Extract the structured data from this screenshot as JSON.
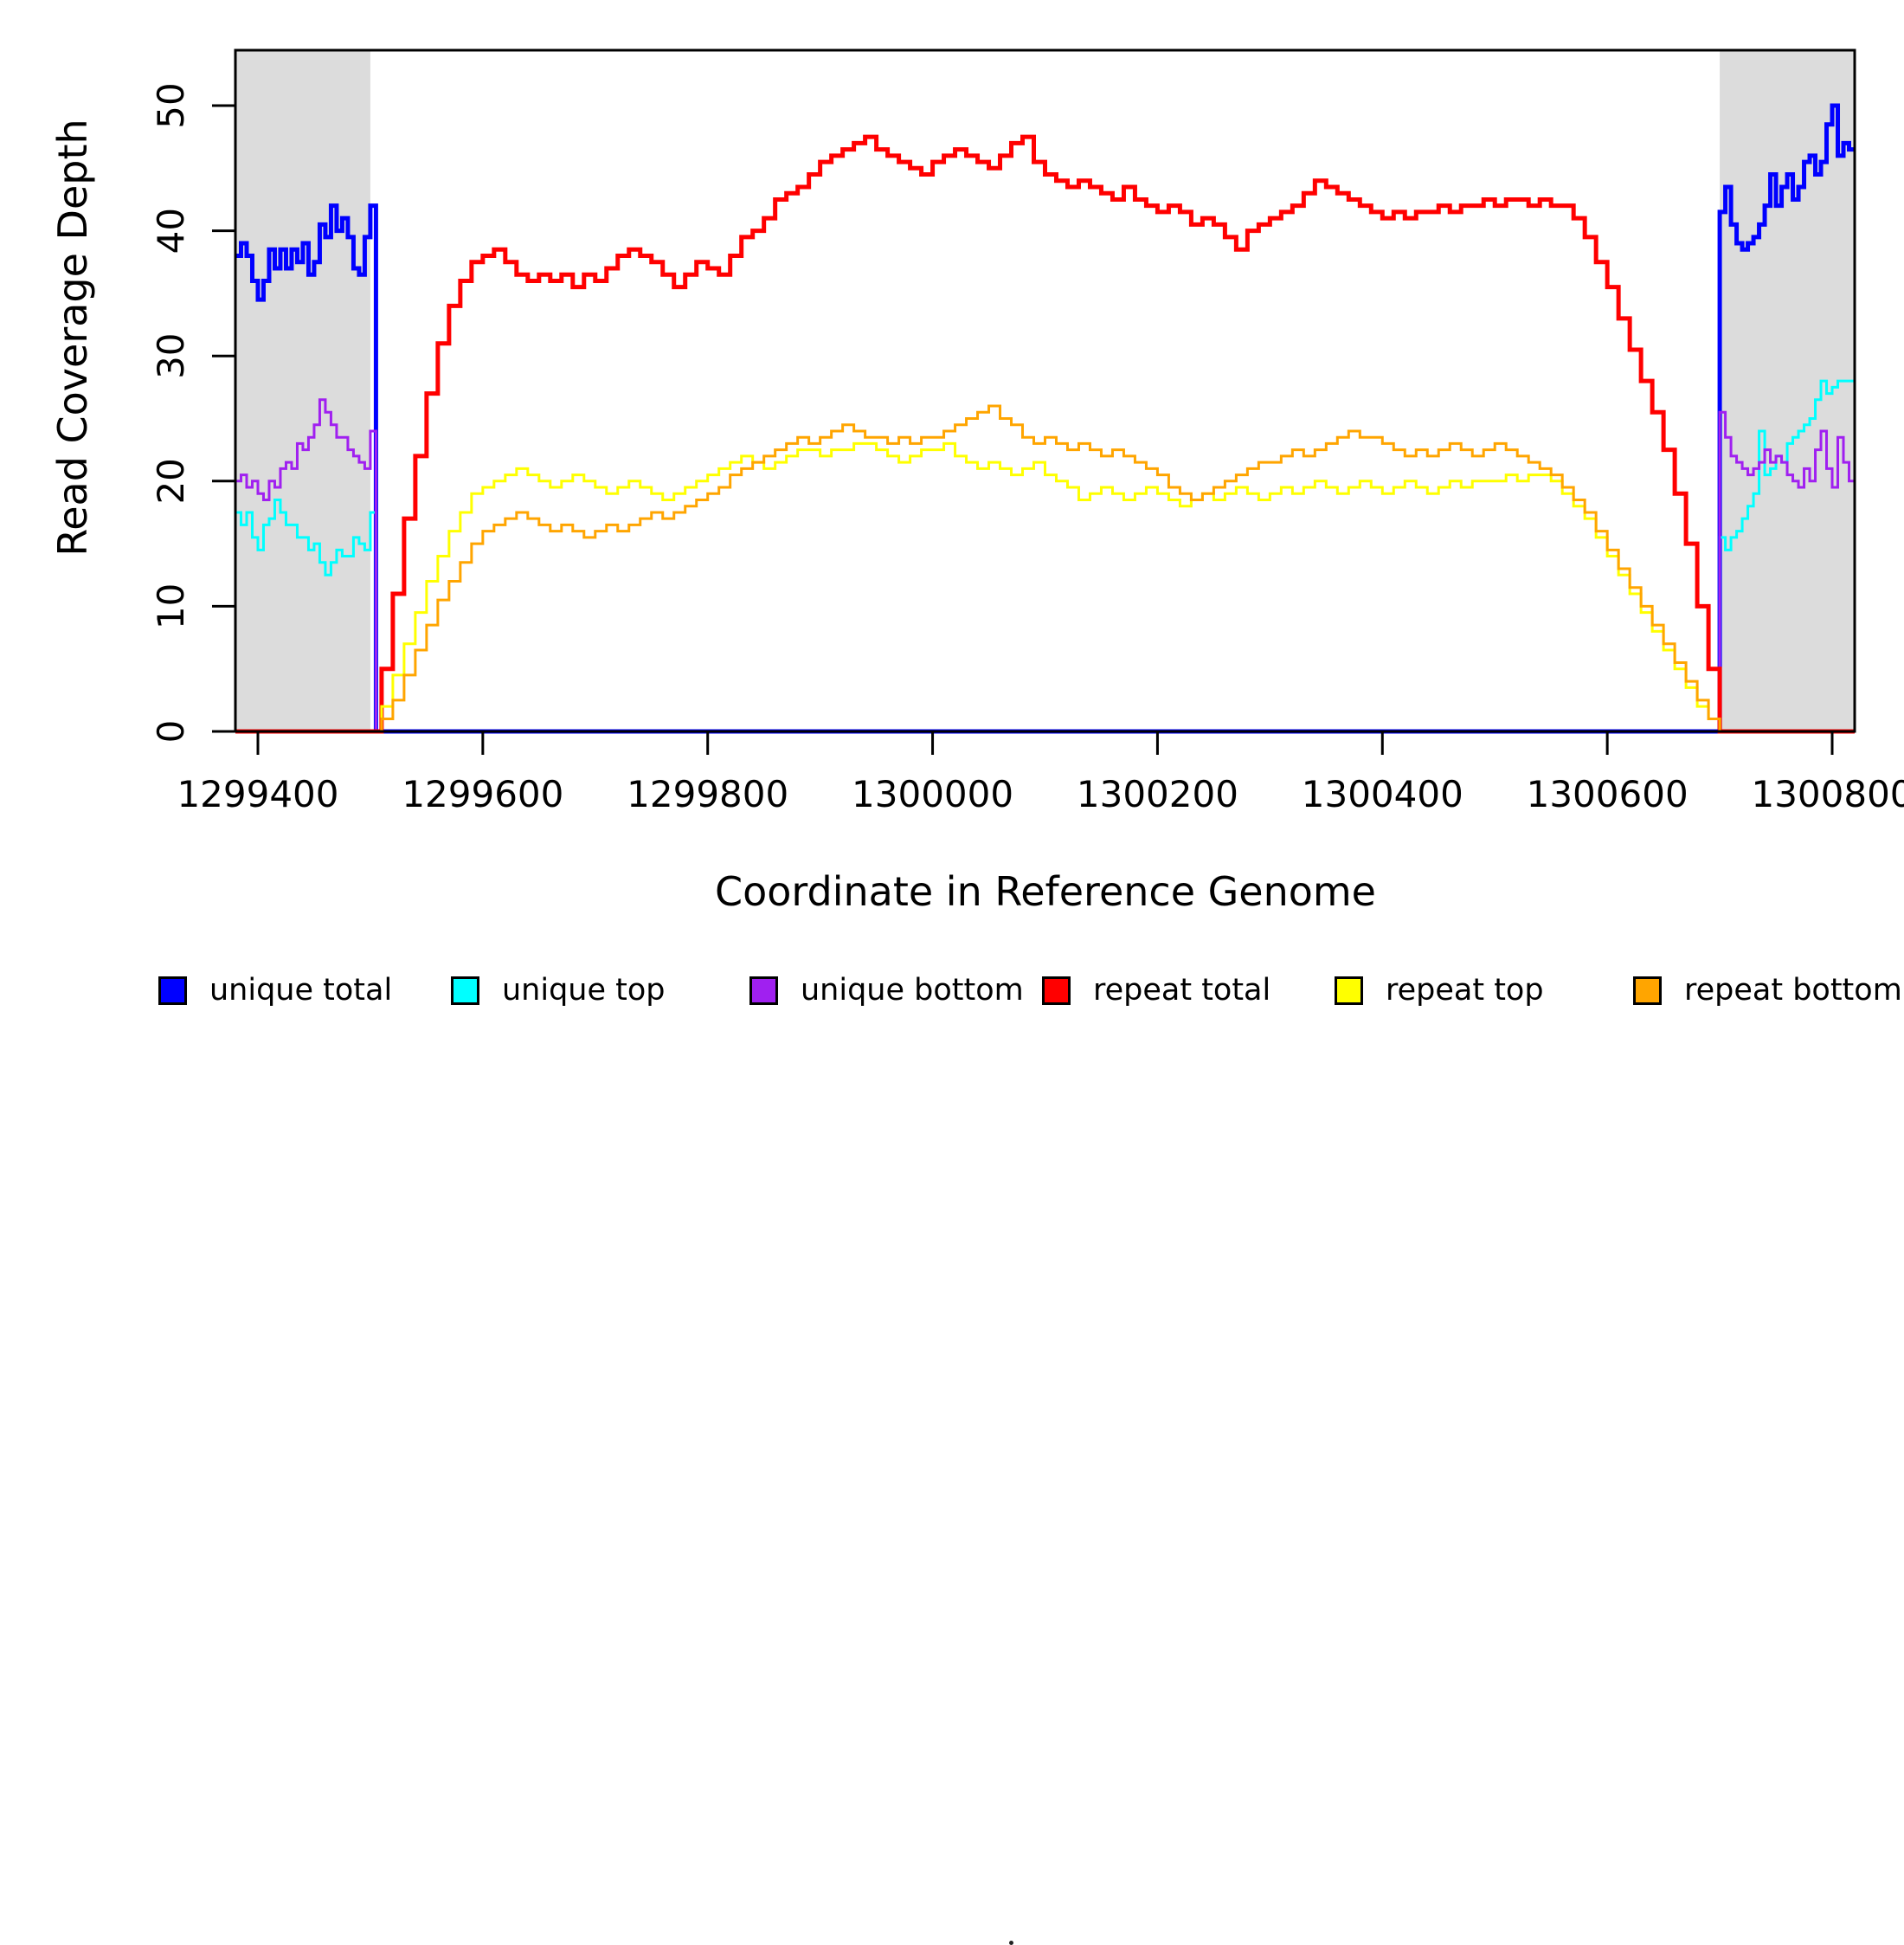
{
  "figure": {
    "x_axis_title": "Coordinate in Reference Genome",
    "y_axis_title": "Read Coverage Depth"
  },
  "legend": {
    "items": [
      {
        "label": "unique total",
        "color": "#0000FF"
      },
      {
        "label": "unique top",
        "color": "#00FFFF"
      },
      {
        "label": "unique bottom",
        "color": "#A020F0"
      },
      {
        "label": "repeat total",
        "color": "#FF0000"
      },
      {
        "label": "repeat top",
        "color": "#FFFF00"
      },
      {
        "label": "repeat bottom",
        "color": "#FFA500"
      }
    ]
  },
  "chart_data": {
    "type": "line",
    "line_style": "step",
    "title": "",
    "xlabel": "Coordinate in Reference Genome",
    "ylabel": "Read Coverage Depth",
    "xlim": [
      1299380,
      1300820
    ],
    "ylim": [
      0,
      54.5
    ],
    "x_ticks": [
      1299400,
      1299600,
      1299800,
      1300000,
      1300200,
      1300400,
      1300600,
      1300800
    ],
    "x_tick_labels": [
      "1299400",
      "1299600",
      "1299800",
      "1300000",
      "1300200",
      "1300400",
      "1300600",
      "1300800"
    ],
    "y_ticks": [
      0,
      10,
      20,
      30,
      40,
      50
    ],
    "y_tick_labels": [
      "0",
      "10",
      "20",
      "30",
      "40",
      "50"
    ],
    "grid": false,
    "legend_position": "bottom",
    "plot_background": "#FFFFFF",
    "shaded_regions": [
      {
        "x0": 1299380,
        "x1": 1299500,
        "color": "#DCDCDC"
      },
      {
        "x0": 1300700,
        "x1": 1300820,
        "color": "#DCDCDC"
      }
    ],
    "series": [
      {
        "name": "unique total",
        "color": "#0000FF",
        "line_width": 5,
        "xend": 1300820,
        "segments": [
          {
            "x0": 1299380,
            "dx": 5,
            "values": [
              38,
              39,
              38,
              36,
              34.5,
              36,
              38.5,
              37,
              38.5,
              37,
              38.5,
              37.5,
              39,
              36.5,
              37.5,
              40.5,
              39.5,
              42,
              40,
              41,
              39.5,
              37,
              36.5,
              39.5,
              42
            ]
          },
          {
            "x0": 1299505,
            "dx": 1195,
            "values": [
              0
            ]
          },
          {
            "x0": 1300700,
            "dx": 5,
            "values": [
              41.5,
              43.5,
              40.5,
              39,
              38.5,
              39,
              39.5,
              40.5,
              42,
              44.5,
              42,
              43.5,
              44.5,
              42.5,
              43.5,
              45.5,
              46,
              44.5,
              45.5,
              48.5,
              50,
              46,
              47,
              46.5
            ]
          }
        ]
      },
      {
        "name": "unique top",
        "color": "#00FFFF",
        "line_width": 3,
        "xend": 1300820,
        "segments": [
          {
            "x0": 1299380,
            "dx": 5,
            "values": [
              17.5,
              16.5,
              17.5,
              15.5,
              14.5,
              16.5,
              17,
              18.5,
              17.5,
              16.5,
              16.5,
              15.5,
              15.5,
              14.5,
              15,
              13.5,
              12.5,
              13.5,
              14.5,
              14,
              14,
              15.5,
              15,
              14.5,
              17.5
            ]
          },
          {
            "x0": 1299505,
            "dx": 1195,
            "values": [
              0
            ]
          },
          {
            "x0": 1300700,
            "dx": 5,
            "values": [
              15.5,
              14.5,
              15.5,
              16,
              17,
              18,
              19,
              24,
              20.5,
              21,
              22,
              21.5,
              23,
              23.5,
              24,
              24.5,
              25,
              26.5,
              28,
              27,
              27.5,
              28,
              28,
              28
            ]
          }
        ]
      },
      {
        "name": "unique bottom",
        "color": "#A020F0",
        "line_width": 3,
        "xend": 1300820,
        "segments": [
          {
            "x0": 1299380,
            "dx": 5,
            "values": [
              20,
              20.5,
              19.5,
              20,
              19,
              18.5,
              20,
              19.5,
              21,
              21.5,
              21,
              23,
              22.5,
              23.5,
              24.5,
              26.5,
              25.5,
              24.5,
              23.5,
              23.5,
              22.5,
              22,
              21.5,
              21,
              24
            ]
          },
          {
            "x0": 1299505,
            "dx": 1195,
            "values": [
              0
            ]
          },
          {
            "x0": 1300700,
            "dx": 5,
            "values": [
              25.5,
              23.5,
              22,
              21.5,
              21,
              20.5,
              21,
              21.5,
              22.5,
              21.5,
              22,
              21.5,
              20.5,
              20,
              19.5,
              21,
              20,
              22.5,
              24,
              21,
              19.5,
              23.5,
              21.5,
              20
            ]
          }
        ]
      },
      {
        "name": "repeat total",
        "color": "#FF0000",
        "line_width": 5,
        "xend": 1300820,
        "segments": [
          {
            "x0": 1299380,
            "dx": 120,
            "values": [
              0
            ]
          },
          {
            "x0": 1299500,
            "dx": 10,
            "values": [
              0,
              5,
              11,
              17,
              22,
              27,
              31,
              34,
              36,
              37.5,
              38,
              38.5,
              37.5,
              36.5,
              36,
              36.5,
              36,
              36.5,
              35.5,
              36.5,
              36,
              37,
              38,
              38.5,
              38,
              37.5,
              36.5,
              35.5,
              36.5,
              37.5,
              37,
              36.5,
              38,
              39.5,
              40,
              41,
              42.5,
              43,
              43.5,
              44.5,
              45.5,
              46,
              46.5,
              47,
              47.5,
              46.5,
              46,
              45.5,
              45,
              44.5,
              45.5,
              46,
              46.5,
              46,
              45.5,
              45,
              46,
              47,
              47.5,
              45.5,
              44.5,
              44,
              43.5,
              44,
              43.5,
              43,
              42.5,
              43.5,
              42.5,
              42,
              41.5,
              42,
              41.5,
              40.5,
              41,
              40.5,
              39.5,
              38.5,
              40,
              40.5,
              41,
              41.5,
              42,
              43,
              44,
              43.5,
              43,
              42.5,
              42,
              41.5,
              41,
              41.5,
              41,
              41.5,
              41.5,
              42,
              41.5,
              42,
              42,
              42.5,
              42,
              42.5,
              42.5,
              42,
              42.5,
              42,
              42,
              41,
              39.5,
              37.5,
              35.5,
              33,
              30.5,
              28,
              25.5,
              22.5,
              19,
              15,
              10,
              5
            ]
          },
          {
            "x0": 1300700,
            "dx": 120,
            "values": [
              0
            ]
          }
        ]
      },
      {
        "name": "repeat top",
        "color": "#FFFF00",
        "line_width": 3,
        "xend": 1300820,
        "segments": [
          {
            "x0": 1299380,
            "dx": 120,
            "values": [
              0
            ]
          },
          {
            "x0": 1299500,
            "dx": 10,
            "values": [
              0,
              2,
              4.5,
              7,
              9.5,
              12,
              14,
              16,
              17.5,
              19,
              19.5,
              20,
              20.5,
              21,
              20.5,
              20,
              19.5,
              20,
              20.5,
              20,
              19.5,
              19,
              19.5,
              20,
              19.5,
              19,
              18.5,
              19,
              19.5,
              20,
              20.5,
              21,
              21.5,
              22,
              21.5,
              21,
              21.5,
              22,
              22.5,
              22.5,
              22,
              22.5,
              22.5,
              23,
              23,
              22.5,
              22,
              21.5,
              22,
              22.5,
              22.5,
              23,
              22,
              21.5,
              21,
              21.5,
              21,
              20.5,
              21,
              21.5,
              20.5,
              20,
              19.5,
              18.5,
              19,
              19.5,
              19,
              18.5,
              19,
              19.5,
              19,
              18.5,
              18,
              18.5,
              19,
              18.5,
              19,
              19.5,
              19,
              18.5,
              19,
              19.5,
              19,
              19.5,
              20,
              19.5,
              19,
              19.5,
              20,
              19.5,
              19,
              19.5,
              20,
              19.5,
              19,
              19.5,
              20,
              19.5,
              20,
              20,
              20,
              20.5,
              20,
              20.5,
              20.5,
              20,
              19,
              18,
              17,
              15.5,
              14,
              12.5,
              11,
              9.5,
              8,
              6.5,
              5,
              3.5,
              2,
              1
            ]
          },
          {
            "x0": 1300700,
            "dx": 120,
            "values": [
              0
            ]
          }
        ]
      },
      {
        "name": "repeat bottom",
        "color": "#FFA500",
        "line_width": 3,
        "xend": 1300820,
        "segments": [
          {
            "x0": 1299380,
            "dx": 120,
            "values": [
              0
            ]
          },
          {
            "x0": 1299500,
            "dx": 10,
            "values": [
              0,
              1,
              2.5,
              4.5,
              6.5,
              8.5,
              10.5,
              12,
              13.5,
              15,
              16,
              16.5,
              17,
              17.5,
              17,
              16.5,
              16,
              16.5,
              16,
              15.5,
              16,
              16.5,
              16,
              16.5,
              17,
              17.5,
              17,
              17.5,
              18,
              18.5,
              19,
              19.5,
              20.5,
              21,
              21.5,
              22,
              22.5,
              23,
              23.5,
              23,
              23.5,
              24,
              24.5,
              24,
              23.5,
              23.5,
              23,
              23.5,
              23,
              23.5,
              23.5,
              24,
              24.5,
              25,
              25.5,
              26,
              25,
              24.5,
              23.5,
              23,
              23.5,
              23,
              22.5,
              23,
              22.5,
              22,
              22.5,
              22,
              21.5,
              21,
              20.5,
              19.5,
              19,
              18.5,
              19,
              19.5,
              20,
              20.5,
              21,
              21.5,
              21.5,
              22,
              22.5,
              22,
              22.5,
              23,
              23.5,
              24,
              23.5,
              23.5,
              23,
              22.5,
              22,
              22.5,
              22,
              22.5,
              23,
              22.5,
              22,
              22.5,
              23,
              22.5,
              22,
              21.5,
              21,
              20.5,
              19.5,
              18.5,
              17.5,
              16,
              14.5,
              13,
              11.5,
              10,
              8.5,
              7,
              5.5,
              4,
              2.5,
              1
            ]
          },
          {
            "x0": 1300700,
            "dx": 120,
            "values": [
              0
            ]
          }
        ]
      }
    ]
  }
}
